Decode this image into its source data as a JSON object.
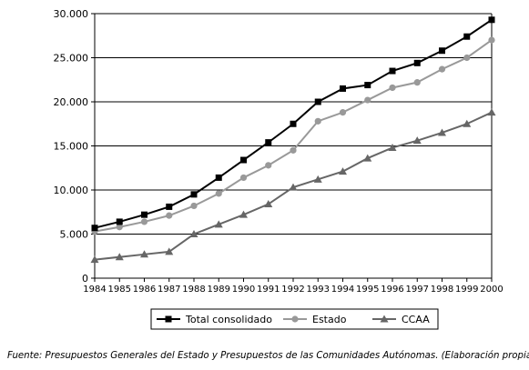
{
  "chart_data": {
    "type": "line",
    "x": [
      1984,
      1985,
      1986,
      1987,
      1988,
      1989,
      1990,
      1991,
      1992,
      1993,
      1994,
      1995,
      1996,
      1997,
      1998,
      1999,
      2000
    ],
    "ylim": [
      0,
      30000
    ],
    "yticks": [
      0,
      5000,
      10000,
      15000,
      20000,
      25000,
      30000
    ],
    "ytick_labels": [
      "0",
      "5.000",
      "10.000",
      "15.000",
      "20.000",
      "25.000",
      "30.000"
    ],
    "grid": "horizontal",
    "legend": "bottom",
    "series": [
      {
        "name": "Total consolidado",
        "color": "#000000",
        "marker": "square",
        "values": [
          5700,
          6400,
          7200,
          8100,
          9500,
          11400,
          13400,
          15400,
          17500,
          20000,
          21500,
          21900,
          23500,
          24400,
          25800,
          27400,
          29300
        ]
      },
      {
        "name": "Estado",
        "color": "#999999",
        "marker": "circle",
        "values": [
          5300,
          5800,
          6400,
          7100,
          8200,
          9600,
          11400,
          12800,
          14500,
          17800,
          18800,
          20200,
          21600,
          22200,
          23700,
          25000,
          27000
        ]
      },
      {
        "name": "CCAA",
        "color": "#666666",
        "marker": "triangle",
        "values": [
          2100,
          2400,
          2700,
          3000,
          5000,
          6100,
          7200,
          8400,
          10300,
          11200,
          12100,
          13600,
          14800,
          15600,
          16500,
          17500,
          18800
        ]
      }
    ]
  },
  "source_note": "Fuente: Presupuestos Generales del Estado y Presupuestos de las Comunidades Autónomas. (Elaboración propia.)"
}
